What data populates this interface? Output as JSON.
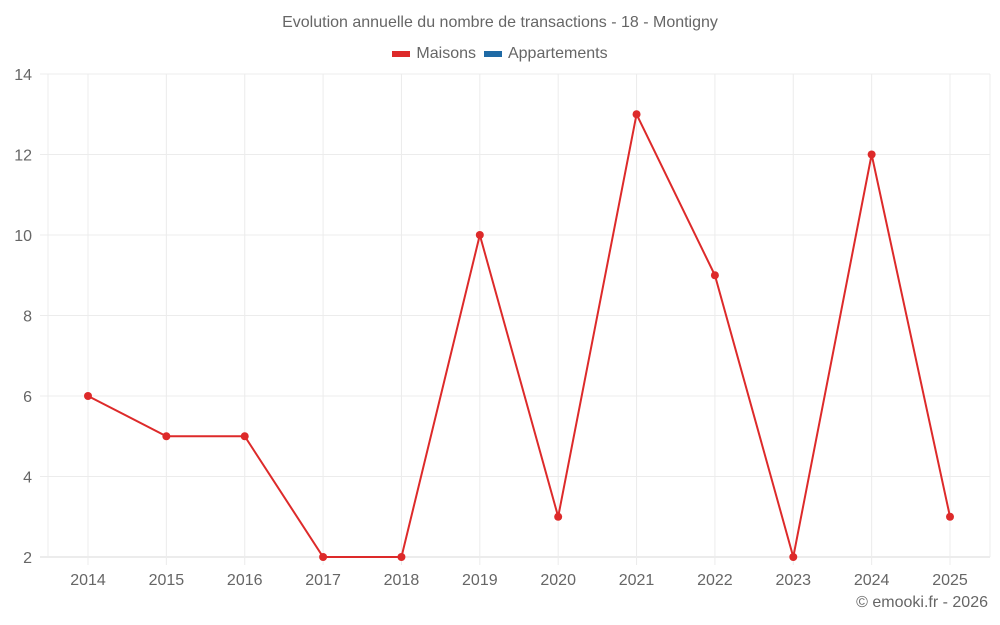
{
  "header": {
    "title": "Evolution annuelle du nombre de transactions - 18 - Montigny"
  },
  "legend": [
    {
      "label": "Maisons",
      "color": "#dd2a2a"
    },
    {
      "label": "Appartements",
      "color": "#1f6aa5"
    }
  ],
  "credit": "© emooki.fr - 2026",
  "chart_data": {
    "type": "line",
    "title": "Evolution annuelle du nombre de transactions - 18 - Montigny",
    "xlabel": "",
    "ylabel": "",
    "categories": [
      "2014",
      "2015",
      "2016",
      "2017",
      "2018",
      "2019",
      "2020",
      "2021",
      "2022",
      "2023",
      "2024",
      "2025"
    ],
    "series": [
      {
        "name": "Maisons",
        "color": "#dd2a2a",
        "values": [
          6,
          5,
          5,
          2,
          2,
          10,
          3,
          13,
          9,
          2,
          12,
          3
        ]
      },
      {
        "name": "Appartements",
        "color": "#1f6aa5",
        "values": []
      }
    ],
    "yticks": [
      2,
      4,
      6,
      8,
      10,
      12,
      14
    ],
    "ylim": [
      2,
      14
    ],
    "grid": true,
    "legend_position": "top"
  }
}
